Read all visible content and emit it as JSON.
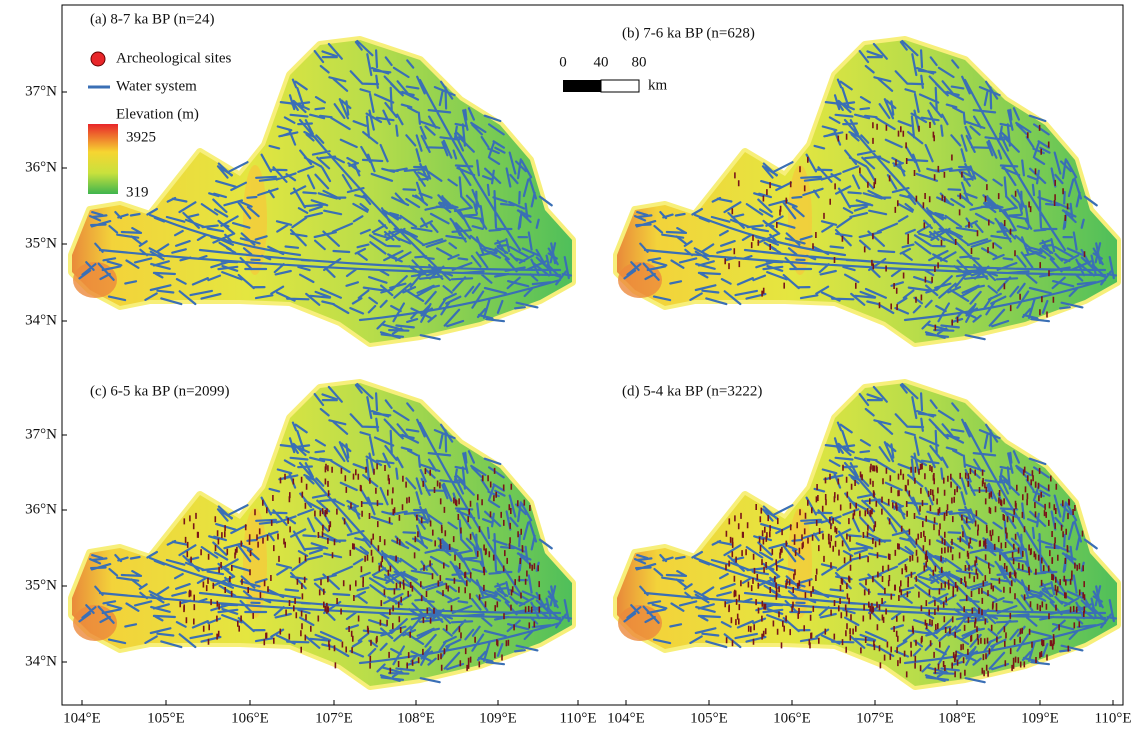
{
  "panels": [
    {
      "title": "(a) 8-7 ka BP  (n=24)"
    },
    {
      "title": "(b) 7-6 ka BP (n=628)"
    },
    {
      "title": "(c) 6-5 ka BP  (n=2099)"
    },
    {
      "title": "(d) 5-4 ka BP  (n=3222)"
    }
  ],
  "legend": {
    "sites": "Archeological sites",
    "water": "Water system",
    "elevation": "Elevation (m)",
    "max": "3925",
    "min": "319"
  },
  "scale_bar": {
    "labels": [
      "0",
      "40",
      "80"
    ],
    "unit": "km"
  },
  "lat_labels": [
    "37°N",
    "36°N",
    "35°N",
    "34°N"
  ],
  "lon_labels": [
    "104°E",
    "105°E",
    "106°E",
    "107°E",
    "108°E",
    "109°E",
    "110°E"
  ]
}
